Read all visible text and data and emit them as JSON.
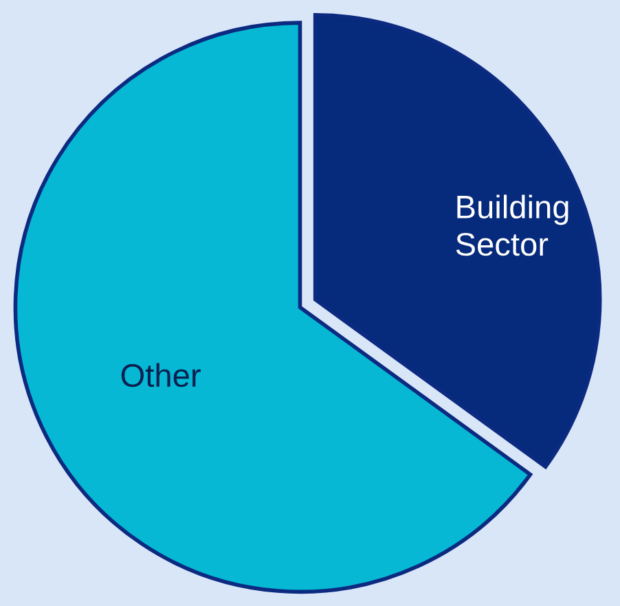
{
  "chart_data": {
    "type": "pie",
    "categories": [
      "Building\nSector",
      "Other"
    ],
    "values": [
      35,
      65
    ],
    "colors": [
      "#062a7c",
      "#06b8d4"
    ]
  }
}
